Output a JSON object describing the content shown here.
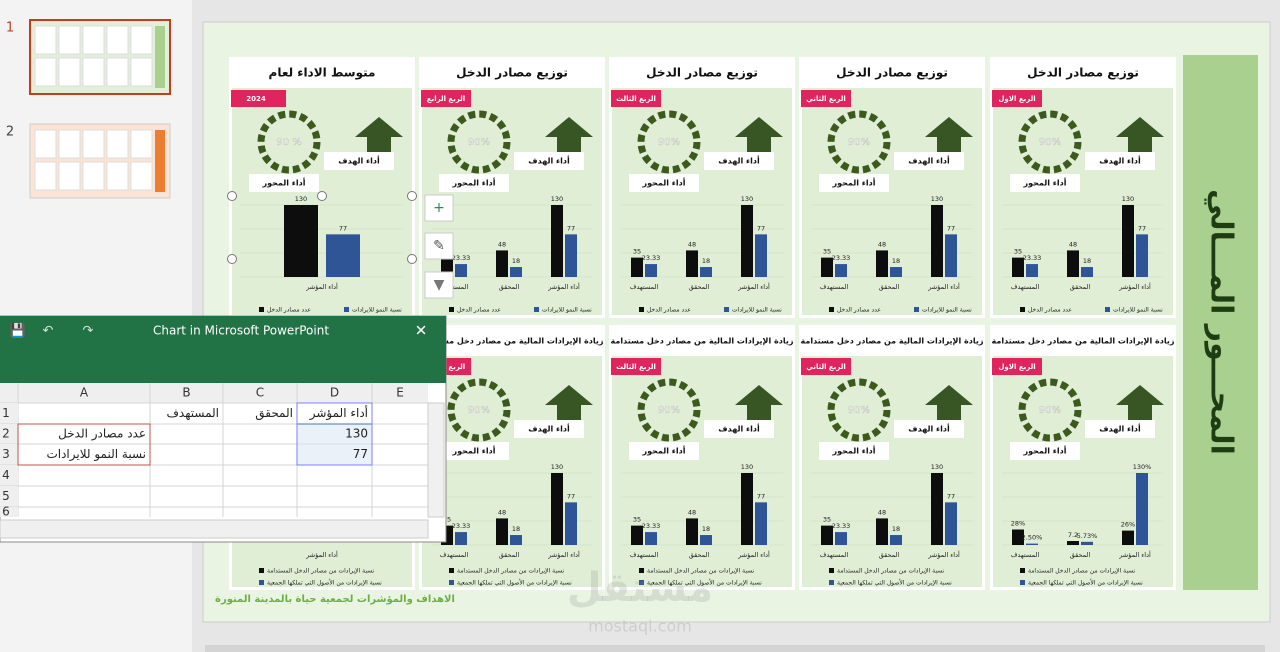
{
  "thumbnails": [
    "1",
    "2"
  ],
  "slide_title": "المحـــور المـــالي",
  "footer": "الاهداف والمؤشرات لجمعية حياة بالمدينة المنورة",
  "watermark": [
    "مستقل",
    "mostaql.com"
  ],
  "panels": [
    {
      "title": "توزيع مصادر الدخل",
      "badge": "الربع الاول",
      "gauge": "90%",
      "target": "أداء الهدف",
      "axis": "أداء المحور"
    },
    {
      "title": "توزيع مصادر الدخل",
      "badge": "الربع الثاني",
      "gauge": "90%",
      "target": "أداء الهدف",
      "axis": "أداء المحور"
    },
    {
      "title": "توزيع مصادر الدخل",
      "badge": "الربع الثالث",
      "gauge": "90%",
      "target": "أداء الهدف",
      "axis": "أداء المحور"
    },
    {
      "title": "توزيع مصادر الدخل",
      "badge": "الربع الرابع",
      "gauge": "90%",
      "target": "أداء الهدف",
      "axis": "أداء المحور"
    },
    {
      "title": "متوسط الاداء لعام",
      "badge": "2024",
      "gauge": "90 %",
      "target": "أداء الهدف",
      "axis": "أداء المحور"
    },
    {
      "title": "زيادة الإيرادات المالية من مصادر دخل مستدامة",
      "badge": "الربع الاول",
      "gauge": "90%",
      "target": "أداء الهدف",
      "axis": "أداء المحور"
    },
    {
      "title": "زيادة الإيرادات المالية من مصادر دخل مستدامة",
      "badge": "الربع الثاني",
      "gauge": "90%",
      "target": "أداء الهدف",
      "axis": "أداء المحور"
    },
    {
      "title": "زيادة الإيرادات المالية من مصادر دخل مستدامة",
      "badge": "الربع الثالث",
      "gauge": "90%",
      "target": "أداء الهدف",
      "axis": "أداء المحور"
    },
    {
      "title": "زيادة الإيرادات المالية من مصادر دخل مستدامة",
      "badge": "الربع الرابع",
      "gauge": "90%",
      "target": "أداء الهدف",
      "axis": "أداء المحور"
    }
  ],
  "chart_data": [
    {
      "type": "bar",
      "categories": [
        "المستهدف",
        "المحقق",
        "أداء المؤشر"
      ],
      "series": [
        {
          "name": "عدد مصادر الدخل",
          "color": "#0d0d0d",
          "values": [
            35,
            48,
            130
          ]
        },
        {
          "name": "نسبة النمو للايرادات",
          "color": "#2f5597",
          "values": [
            23.33,
            18,
            77
          ]
        }
      ]
    },
    {
      "type": "bar",
      "categories": [
        "المستهدف",
        "المحقق",
        "أداء المؤشر"
      ],
      "series": [
        {
          "name": "عدد مصادر الدخل",
          "color": "#0d0d0d",
          "values": [
            35,
            48,
            130
          ]
        },
        {
          "name": "نسبة النمو للايرادات",
          "color": "#2f5597",
          "values": [
            23.33,
            18,
            77
          ]
        }
      ]
    },
    {
      "type": "bar",
      "categories": [
        "المستهدف",
        "المحقق",
        "أداء المؤشر"
      ],
      "series": [
        {
          "name": "عدد مصادر الدخل",
          "color": "#0d0d0d",
          "values": [
            35,
            48,
            130
          ]
        },
        {
          "name": "نسبة النمو للايرادات",
          "color": "#2f5597",
          "values": [
            23.33,
            18,
            77
          ]
        }
      ]
    },
    {
      "type": "bar",
      "categories": [
        "المستهدف",
        "المحقق",
        "أداء المؤشر"
      ],
      "series": [
        {
          "name": "عدد مصادر الدخل",
          "color": "#0d0d0d",
          "values": [
            35,
            48,
            130
          ]
        },
        {
          "name": "نسبة النمو للايرادات",
          "color": "#2f5597",
          "values": [
            23.33,
            18,
            77
          ]
        }
      ]
    },
    {
      "type": "bar",
      "categories": [
        "أداء المؤشر"
      ],
      "series": [
        {
          "name": "عدد مصادر الدخل",
          "color": "#0d0d0d",
          "values": [
            130
          ]
        },
        {
          "name": "نسبة النمو للايرادات",
          "color": "#2f5597",
          "values": [
            77
          ]
        }
      ]
    },
    {
      "type": "bar",
      "categories": [
        "المستهدف",
        "المحقق",
        "أداء المؤشر"
      ],
      "series": [
        {
          "name": "نسبة الإيرادات من مصادر الدخل المستدامة",
          "color": "#0d0d0d",
          "values": [
            28,
            7.2,
            26
          ],
          "value_labels": [
            "28%",
            "7.2",
            "26%"
          ]
        },
        {
          "name": "نسبة الإيرادات من الأصول التي تملكها الجمعية",
          "color": "#2f5597",
          "values": [
            2.5,
            5.73,
            130
          ],
          "value_labels": [
            "2.50%",
            "5.73%",
            "130%"
          ]
        }
      ]
    },
    {
      "type": "bar",
      "categories": [
        "المستهدف",
        "المحقق",
        "أداء المؤشر"
      ],
      "series": [
        {
          "name": "نسبة الإيرادات من مصادر الدخل المستدامة",
          "color": "#0d0d0d",
          "values": [
            35,
            48,
            130
          ]
        },
        {
          "name": "نسبة الإيرادات من الأصول التي تملكها الجمعية",
          "color": "#2f5597",
          "values": [
            23.33,
            18,
            77
          ]
        }
      ]
    },
    {
      "type": "bar",
      "categories": [
        "المستهدف",
        "المحقق",
        "أداء المؤشر"
      ],
      "series": [
        {
          "name": "نسبة الإيرادات من مصادر الدخل المستدامة",
          "color": "#0d0d0d",
          "values": [
            35,
            48,
            130
          ]
        },
        {
          "name": "نسبة الإيرادات من الأصول التي تملكها الجمعية",
          "color": "#2f5597",
          "values": [
            23.33,
            18,
            77
          ]
        }
      ]
    },
    {
      "type": "bar",
      "categories": [
        "المستهدف",
        "المحقق",
        "أداء المؤشر"
      ],
      "series": [
        {
          "name": "نسبة الإيرادات من مصادر الدخل المستدامة",
          "color": "#0d0d0d",
          "values": [
            35,
            48,
            130
          ]
        },
        {
          "name": "نسبة الإيرادات من الأصول التي تملكها الجمعية",
          "color": "#2f5597",
          "values": [
            23.33,
            18,
            77
          ]
        }
      ]
    }
  ],
  "hidden_panel": {
    "category": "أداء المؤشر",
    "legend": [
      "نسبة الإيرادات من مصادر الدخل المستدامة",
      "نسبة الإيرادات من الأصول التي تملكها الجمعية"
    ]
  },
  "excel": {
    "title": "Chart in Microsoft PowerPoint",
    "columns": [
      "A",
      "B",
      "C",
      "D",
      "E"
    ],
    "row_numbers": [
      "1",
      "2",
      "3",
      "4",
      "5",
      "6"
    ],
    "rows": [
      {
        "B": "المستهدف",
        "C": "المحقق",
        "D": "أداء المؤشر"
      },
      {
        "A": "عدد مصادر الدخل",
        "D": "130"
      },
      {
        "A": "نسبة النمو للايرادات",
        "D": "77"
      }
    ]
  }
}
